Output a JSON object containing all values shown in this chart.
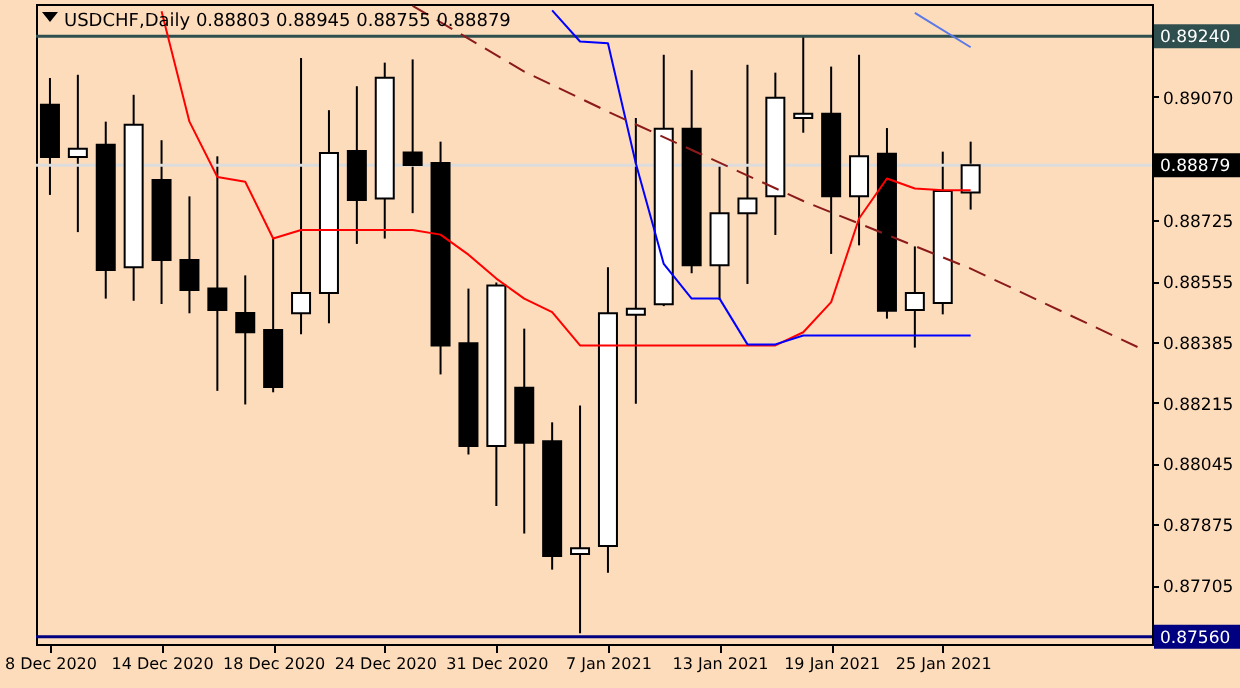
{
  "chart_data": {
    "type": "candlestick",
    "title": "USDCHF,Daily  0.88803 0.88945 0.88755 0.88879",
    "categories": [
      "8 Dec 2020",
      null,
      null,
      null,
      "14 Dec 2020",
      null,
      null,
      null,
      "18 Dec 2020",
      null,
      null,
      null,
      "24 Dec 2020",
      null,
      null,
      null,
      "31 Dec 2020",
      null,
      null,
      null,
      "7 Jan 2021",
      null,
      null,
      null,
      "13 Jan 2021",
      null,
      null,
      null,
      "19 Jan 2021",
      null,
      null,
      null,
      "25 Jan 2021",
      null,
      null,
      null,
      null,
      null,
      null,
      null
    ],
    "ohlc": [
      [
        0.89048,
        0.89123,
        0.88796,
        0.88902
      ],
      [
        0.88902,
        0.89132,
        0.88692,
        0.88925
      ],
      [
        0.88936,
        0.89001,
        0.88506,
        0.88586
      ],
      [
        0.88594,
        0.89076,
        0.885,
        0.88992
      ],
      [
        0.88838,
        0.88949,
        0.88491,
        0.88614
      ],
      [
        0.88614,
        0.88792,
        0.88465,
        0.8853
      ],
      [
        0.88534,
        0.88904,
        0.88248,
        0.88474
      ],
      [
        0.88466,
        0.88571,
        0.8821,
        0.88412
      ],
      [
        0.88418,
        0.88674,
        0.88244,
        0.88259
      ],
      [
        0.88465,
        0.89179,
        0.88406,
        0.88522
      ],
      [
        0.88522,
        0.89033,
        0.88437,
        0.88913
      ],
      [
        0.88919,
        0.891,
        0.88659,
        0.88782
      ],
      [
        0.88786,
        0.89166,
        0.88674,
        0.89124
      ],
      [
        0.88915,
        0.89175,
        0.88745,
        0.8888
      ],
      [
        0.88885,
        0.88945,
        0.88294,
        0.88375
      ],
      [
        0.88381,
        0.88534,
        0.8807,
        0.88094
      ],
      [
        0.88094,
        0.88551,
        0.87926,
        0.88543
      ],
      [
        0.88257,
        0.88422,
        0.87849,
        0.88103
      ],
      [
        0.88107,
        0.8816,
        0.87748,
        0.87786
      ],
      [
        0.87792,
        0.88207,
        0.8757,
        0.87808
      ],
      [
        0.87814,
        0.88594,
        0.87739,
        0.88465
      ],
      [
        0.88461,
        0.89011,
        0.88212,
        0.88478
      ],
      [
        0.8849,
        0.89188,
        0.88485,
        0.88981
      ],
      [
        0.88981,
        0.89145,
        0.88577,
        0.88599
      ],
      [
        0.88599,
        0.8888,
        0.88502,
        0.88745
      ],
      [
        0.88745,
        0.8916,
        0.88547,
        0.88786
      ],
      [
        0.88792,
        0.89138,
        0.88684,
        0.89068
      ],
      [
        0.89011,
        0.8924,
        0.8897,
        0.89023
      ],
      [
        0.89023,
        0.89155,
        0.88631,
        0.88792
      ],
      [
        0.88792,
        0.89188,
        0.88655,
        0.88904
      ],
      [
        0.88911,
        0.88983,
        0.8845,
        0.88472
      ],
      [
        0.88474,
        0.88652,
        0.88369,
        0.88522
      ],
      [
        0.88494,
        0.88917,
        0.88462,
        0.88807
      ],
      [
        0.88803,
        0.88945,
        0.88755,
        0.88879
      ],
      null,
      null,
      null,
      null,
      null,
      null
    ],
    "series": [
      {
        "type": "line",
        "color": "#ff0000",
        "values": [
          null,
          null,
          null,
          null,
          0.8931,
          0.89001,
          0.88846,
          0.88833,
          0.88674,
          0.88698,
          0.88698,
          0.88698,
          0.88698,
          0.88698,
          0.88685,
          0.88629,
          0.88562,
          0.88506,
          0.88468,
          0.88375,
          0.88375,
          0.88375,
          0.88375,
          0.88375,
          0.88375,
          0.88375,
          0.88375,
          0.88412,
          0.88496,
          0.8873,
          0.88842,
          0.88814,
          0.88809,
          0.88809,
          null,
          null,
          null,
          null,
          null,
          null
        ]
      },
      {
        "type": "line",
        "color": "#0000ff",
        "values": [
          null,
          null,
          null,
          null,
          null,
          null,
          null,
          null,
          null,
          null,
          null,
          null,
          null,
          null,
          null,
          null,
          null,
          null,
          0.89312,
          0.89225,
          0.8922,
          0.88884,
          0.88603,
          0.88506,
          0.88506,
          0.88378,
          0.88378,
          0.88403,
          0.88403,
          0.88403,
          0.88403,
          0.88403,
          0.88403,
          0.88403,
          null,
          null,
          null,
          null,
          null,
          null
        ]
      },
      {
        "type": "line",
        "color": "#5a78e6",
        "values": [
          null,
          null,
          null,
          null,
          null,
          null,
          null,
          null,
          null,
          null,
          null,
          null,
          null,
          null,
          null,
          null,
          null,
          null,
          null,
          null,
          null,
          null,
          null,
          null,
          null,
          null,
          null,
          null,
          null,
          null,
          null,
          0.89305,
          null,
          0.89209,
          null,
          null,
          null,
          null,
          null,
          null
        ]
      },
      {
        "type": "line",
        "color": "#8b1a1a",
        "line_style": "dashed",
        "values": [
          null,
          null,
          null,
          null,
          null,
          null,
          null,
          null,
          null,
          null,
          null,
          null,
          null,
          0.89325,
          null,
          null,
          null,
          0.89141,
          null,
          null,
          0.89029,
          null,
          null,
          null,
          null,
          null,
          null,
          0.88779,
          null,
          null,
          null,
          null,
          null,
          0.8859,
          null,
          null,
          null,
          null,
          null,
          0.8837
        ]
      }
    ],
    "ylim": [
      0.8754,
      0.8933
    ],
    "yticks": [
      {
        "value": 0.8907,
        "label": "0.89070"
      },
      0.88725,
      0.88555,
      0.88385,
      0.88215,
      0.88045,
      0.87875,
      0.87705
    ],
    "ref_lines": [
      {
        "axis": "y",
        "value": 0.8924,
        "label": "0.89240",
        "color": "#2f4f4f"
      },
      {
        "axis": "y",
        "value": 0.88879,
        "label": "0.88879",
        "color": "#dcdcdc"
      },
      {
        "axis": "y",
        "value": 0.8756,
        "label": "0.87560",
        "color": "#000080"
      }
    ]
  }
}
